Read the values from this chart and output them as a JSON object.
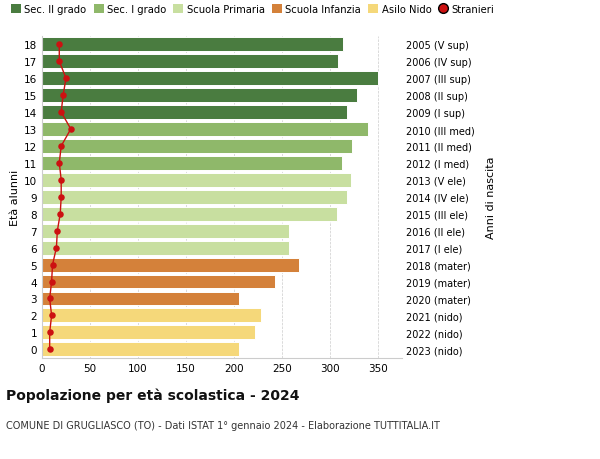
{
  "ages": [
    0,
    1,
    2,
    3,
    4,
    5,
    6,
    7,
    8,
    9,
    10,
    11,
    12,
    13,
    14,
    15,
    16,
    17,
    18
  ],
  "years_labels": [
    "2023 (nido)",
    "2022 (nido)",
    "2021 (nido)",
    "2020 (mater)",
    "2019 (mater)",
    "2018 (mater)",
    "2017 (I ele)",
    "2016 (II ele)",
    "2015 (III ele)",
    "2014 (IV ele)",
    "2013 (V ele)",
    "2012 (I med)",
    "2011 (II med)",
    "2010 (III med)",
    "2009 (I sup)",
    "2008 (II sup)",
    "2007 (III sup)",
    "2006 (IV sup)",
    "2005 (V sup)"
  ],
  "bar_values": [
    205,
    222,
    228,
    205,
    243,
    268,
    257,
    257,
    307,
    318,
    322,
    312,
    323,
    340,
    318,
    328,
    350,
    308,
    314
  ],
  "bar_colors": [
    "#f5d87a",
    "#f5d87a",
    "#f5d87a",
    "#d4813a",
    "#d4813a",
    "#d4813a",
    "#c8dfa0",
    "#c8dfa0",
    "#c8dfa0",
    "#c8dfa0",
    "#c8dfa0",
    "#8fb86a",
    "#8fb86a",
    "#8fb86a",
    "#4a7c40",
    "#4a7c40",
    "#4a7c40",
    "#4a7c40",
    "#4a7c40"
  ],
  "stranieri_values": [
    8,
    8,
    10,
    8,
    10,
    11,
    15,
    16,
    19,
    20,
    20,
    18,
    20,
    30,
    20,
    22,
    25,
    18,
    18
  ],
  "stranieri_color": "#cc1111",
  "title": "Popolazione per età scolastica - 2024",
  "subtitle": "COMUNE DI GRUGLIASCO (TO) - Dati ISTAT 1° gennaio 2024 - Elaborazione TUTTITALIA.IT",
  "ylabel": "Età alunni",
  "right_label": "Anni di nascita",
  "xlim": [
    0,
    375
  ],
  "xticks": [
    0,
    50,
    100,
    150,
    200,
    250,
    300,
    350
  ],
  "legend_entries": [
    {
      "label": "Sec. II grado",
      "color": "#4a7c40"
    },
    {
      "label": "Sec. I grado",
      "color": "#8fb86a"
    },
    {
      "label": "Scuola Primaria",
      "color": "#c8dfa0"
    },
    {
      "label": "Scuola Infanzia",
      "color": "#d4813a"
    },
    {
      "label": "Asilo Nido",
      "color": "#f5d87a"
    },
    {
      "label": "Stranieri",
      "color": "#cc1111"
    }
  ],
  "bg_color": "#ffffff",
  "grid_color": "#cccccc",
  "bar_height": 0.82
}
